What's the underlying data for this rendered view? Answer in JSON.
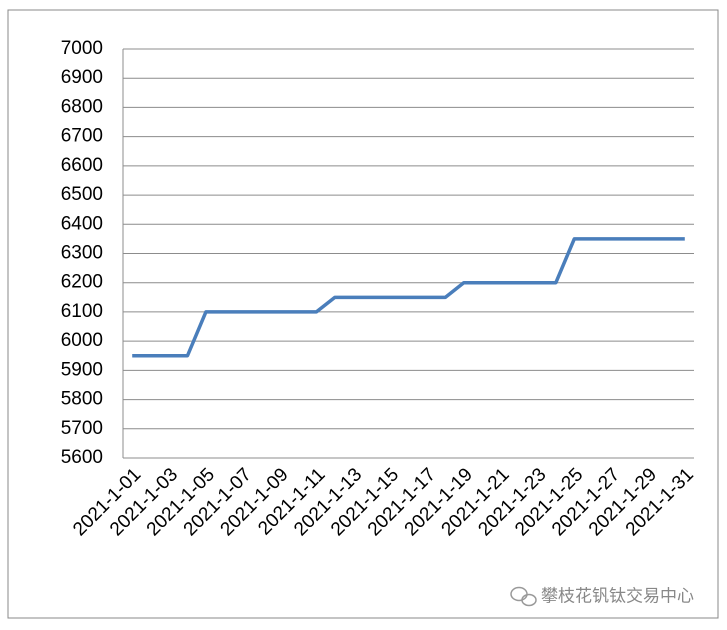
{
  "chart_data": {
    "type": "line",
    "categories": [
      "2021-1-01",
      null,
      "2021-1-03",
      null,
      "2021-1-05",
      null,
      "2021-1-07",
      null,
      "2021-1-09",
      null,
      "2021-1-11",
      null,
      "2021-1-13",
      null,
      "2021-1-15",
      null,
      "2021-1-17",
      null,
      "2021-1-19",
      null,
      "2021-1-21",
      null,
      "2021-1-23",
      null,
      "2021-1-25",
      null,
      "2021-1-27",
      null,
      "2021-1-29",
      null,
      "2021-1-31"
    ],
    "series": [
      {
        "color": "#4a7ebb",
        "values": [
          5950,
          5950,
          5950,
          5950,
          6100,
          6100,
          6100,
          6100,
          6100,
          6100,
          6100,
          6150,
          6150,
          6150,
          6150,
          6150,
          6150,
          6150,
          6200,
          6200,
          6200,
          6200,
          6200,
          6200,
          6350,
          6350,
          6350,
          6350,
          6350,
          6350,
          6350
        ]
      }
    ],
    "ylim": [
      5600,
      7000
    ],
    "yticks": [
      5600,
      5700,
      5800,
      5900,
      6000,
      6100,
      6200,
      6300,
      6400,
      6500,
      6600,
      6700,
      6800,
      6900,
      7000
    ],
    "grid": true,
    "watermark": "攀枝花钒钛交易中心"
  }
}
